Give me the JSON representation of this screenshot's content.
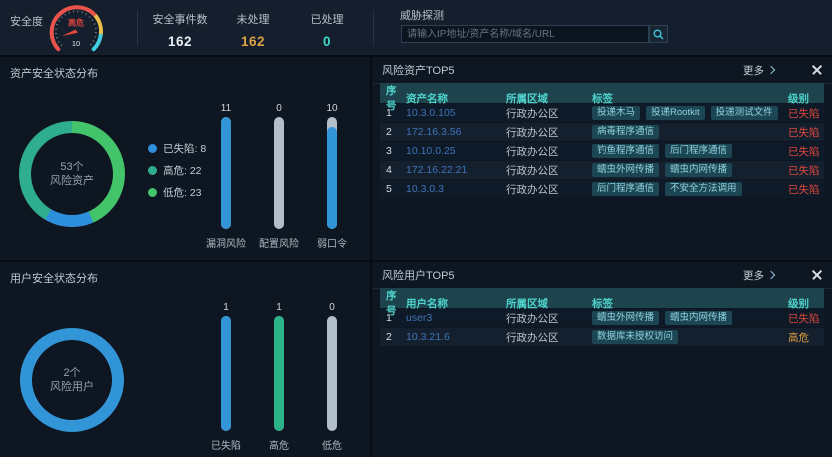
{
  "topbar": {
    "gauge": {
      "label": "安全度",
      "status": "高危",
      "value": "10"
    },
    "stats": [
      {
        "label": "安全事件数",
        "value": "162",
        "color": "#e8eef4"
      },
      {
        "label": "未处理",
        "value": "162",
        "color": "#dba246"
      },
      {
        "label": "已处理",
        "value": "0",
        "color": "#3edccb"
      }
    ],
    "search": {
      "label": "威胁探测",
      "placeholder": "请输入IP地址/资产名称/域名/URL",
      "value": ""
    }
  },
  "asset_panel": {
    "title": "资产安全状态分布",
    "donut": {
      "center_value": "53个",
      "center_label": "风险资产",
      "segments": [
        {
          "label": "已失陷",
          "value": 8,
          "color": "#2e8fdc"
        },
        {
          "label": "高危",
          "value": 22,
          "color": "#2fae8f"
        },
        {
          "label": "低危",
          "value": 23,
          "color": "#44c46a"
        }
      ]
    },
    "bars": [
      {
        "label": "漏洞风险",
        "value": 11,
        "color": "#3295d8"
      },
      {
        "label": "配置风险",
        "value": 0,
        "color": "#3295d8"
      },
      {
        "label": "弱口令",
        "value": 10,
        "color": "#3295d8"
      }
    ]
  },
  "user_panel": {
    "title": "用户安全状态分布",
    "donut": {
      "center_value": "2个",
      "center_label": "风险用户",
      "ring_color": "#3295d8"
    },
    "bars": [
      {
        "label": "已失陷",
        "value": 1,
        "color": "#3295d8"
      },
      {
        "label": "高危",
        "value": 1,
        "color": "#2bb287"
      },
      {
        "label": "低危",
        "value": 0,
        "color": "#3295d8"
      }
    ]
  },
  "risk_assets": {
    "title": "风险资产TOP5",
    "more_label": "更多",
    "columns": [
      "序号",
      "资产名称",
      "所属区域",
      "标签",
      "级别"
    ],
    "rows": [
      {
        "no": "1",
        "name": "10.3.0.105",
        "region": "行政办公区",
        "tags": [
          "投递木马",
          "投递Rootkit",
          "投递测试文件"
        ],
        "level": "已失陷",
        "level_color": "#e0483d"
      },
      {
        "no": "2",
        "name": "172.16.3.56",
        "region": "行政办公区",
        "tags": [
          "病毒程序通信"
        ],
        "level": "已失陷",
        "level_color": "#e0483d"
      },
      {
        "no": "3",
        "name": "10.10.0.25",
        "region": "行政办公区",
        "tags": [
          "钓鱼程序通信",
          "后门程序通信"
        ],
        "level": "已失陷",
        "level_color": "#e0483d"
      },
      {
        "no": "4",
        "name": "172.16.22.21",
        "region": "行政办公区",
        "tags": [
          "蠕虫外网传播",
          "蠕虫内网传播"
        ],
        "level": "已失陷",
        "level_color": "#e0483d"
      },
      {
        "no": "5",
        "name": "10.3.0.3",
        "region": "行政办公区",
        "tags": [
          "后门程序通信",
          "不安全方法调用"
        ],
        "level": "已失陷",
        "level_color": "#e0483d"
      }
    ]
  },
  "risk_users": {
    "title": "风险用户TOP5",
    "more_label": "更多",
    "columns": [
      "序号",
      "用户名称",
      "所属区域",
      "标签",
      "级别"
    ],
    "rows": [
      {
        "no": "1",
        "name": "user3",
        "region": "行政办公区",
        "tags": [
          "蠕虫外网传播",
          "蠕虫内网传播"
        ],
        "level": "已失陷",
        "level_color": "#e0483d"
      },
      {
        "no": "2",
        "name": "10.3.21.6",
        "region": "行政办公区",
        "tags": [
          "数据库未授权访问"
        ],
        "level": "高危",
        "level_color": "#dd9d3e"
      }
    ]
  }
}
